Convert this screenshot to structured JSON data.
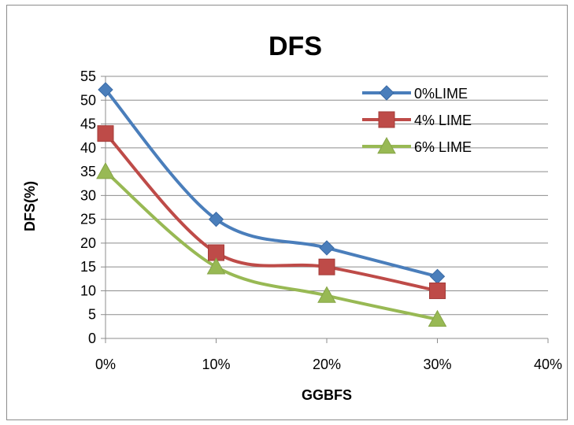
{
  "chart_data": {
    "type": "line",
    "title": "DFS",
    "xlabel": "GGBFS",
    "ylabel": "DFS(%)",
    "categories": [
      "0%",
      "10%",
      "20%",
      "30%",
      "40%"
    ],
    "x": [
      0,
      10,
      20,
      30
    ],
    "xlim": [
      0,
      40
    ],
    "ylim": [
      0,
      55
    ],
    "ytick_step": 5,
    "yticks": [
      "0",
      "5",
      "10",
      "15",
      "20",
      "25",
      "30",
      "35",
      "40",
      "45",
      "50",
      "55"
    ],
    "grid": "horizontal",
    "smooth": true,
    "legend_position": "top-right",
    "series": [
      {
        "name": "0%LIME",
        "values": [
          52.2,
          25,
          19,
          13
        ],
        "color": "#4a7ebb",
        "marker": "diamond"
      },
      {
        "name": "4% LIME",
        "values": [
          43,
          18,
          15,
          10
        ],
        "color": "#be4b48",
        "marker": "square"
      },
      {
        "name": "6% LIME",
        "values": [
          35,
          15,
          9,
          4
        ],
        "color": "#98b954",
        "marker": "triangle"
      }
    ]
  }
}
